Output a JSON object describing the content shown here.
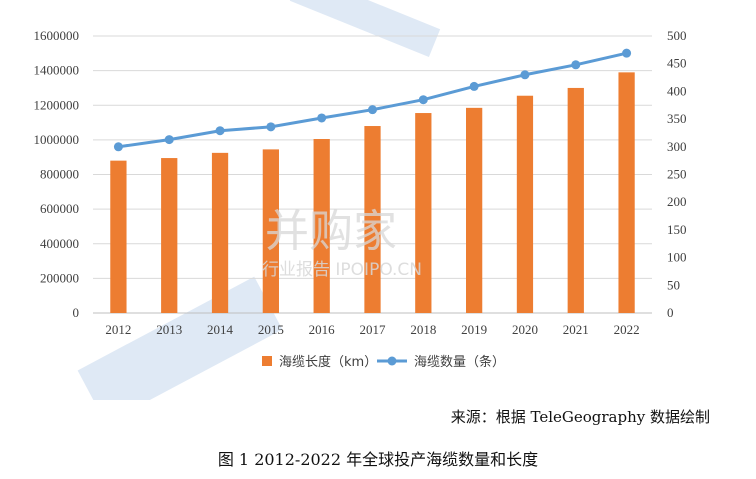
{
  "chart_data": {
    "type": "bar-line",
    "categories": [
      "2012",
      "2013",
      "2014",
      "2015",
      "2016",
      "2017",
      "2018",
      "2019",
      "2020",
      "2021",
      "2022"
    ],
    "series": [
      {
        "name": "海缆长度（km）",
        "type": "bar",
        "axis": "left",
        "color": "#ED7D31",
        "values": [
          880000,
          895000,
          925000,
          945000,
          1005000,
          1080000,
          1155000,
          1185000,
          1255000,
          1300000,
          1390000
        ]
      },
      {
        "name": "海缆数量（条）",
        "type": "line",
        "axis": "right",
        "color": "#5B9BD5",
        "values": [
          300,
          313,
          329,
          336,
          352,
          367,
          385,
          409,
          430,
          448,
          469
        ]
      }
    ],
    "y_left": {
      "min": 0,
      "max": 1600000,
      "step": 200000,
      "ticks": [
        "0",
        "200000",
        "400000",
        "600000",
        "800000",
        "1000000",
        "1200000",
        "1400000",
        "1600000"
      ]
    },
    "y_right": {
      "min": 0,
      "max": 500,
      "step": 50,
      "ticks": [
        "0",
        "50",
        "100",
        "150",
        "200",
        "250",
        "300",
        "350",
        "400",
        "450",
        "500"
      ]
    },
    "grid": true,
    "legend_position": "bottom"
  },
  "watermark": {
    "main": "并购家",
    "sub": "行业报告 IPOIPO.CN"
  },
  "source_text": "来源：根据 TeleGeography 数据绘制",
  "caption_text": "图 1 2012-2022 年全球投产海缆数量和长度"
}
